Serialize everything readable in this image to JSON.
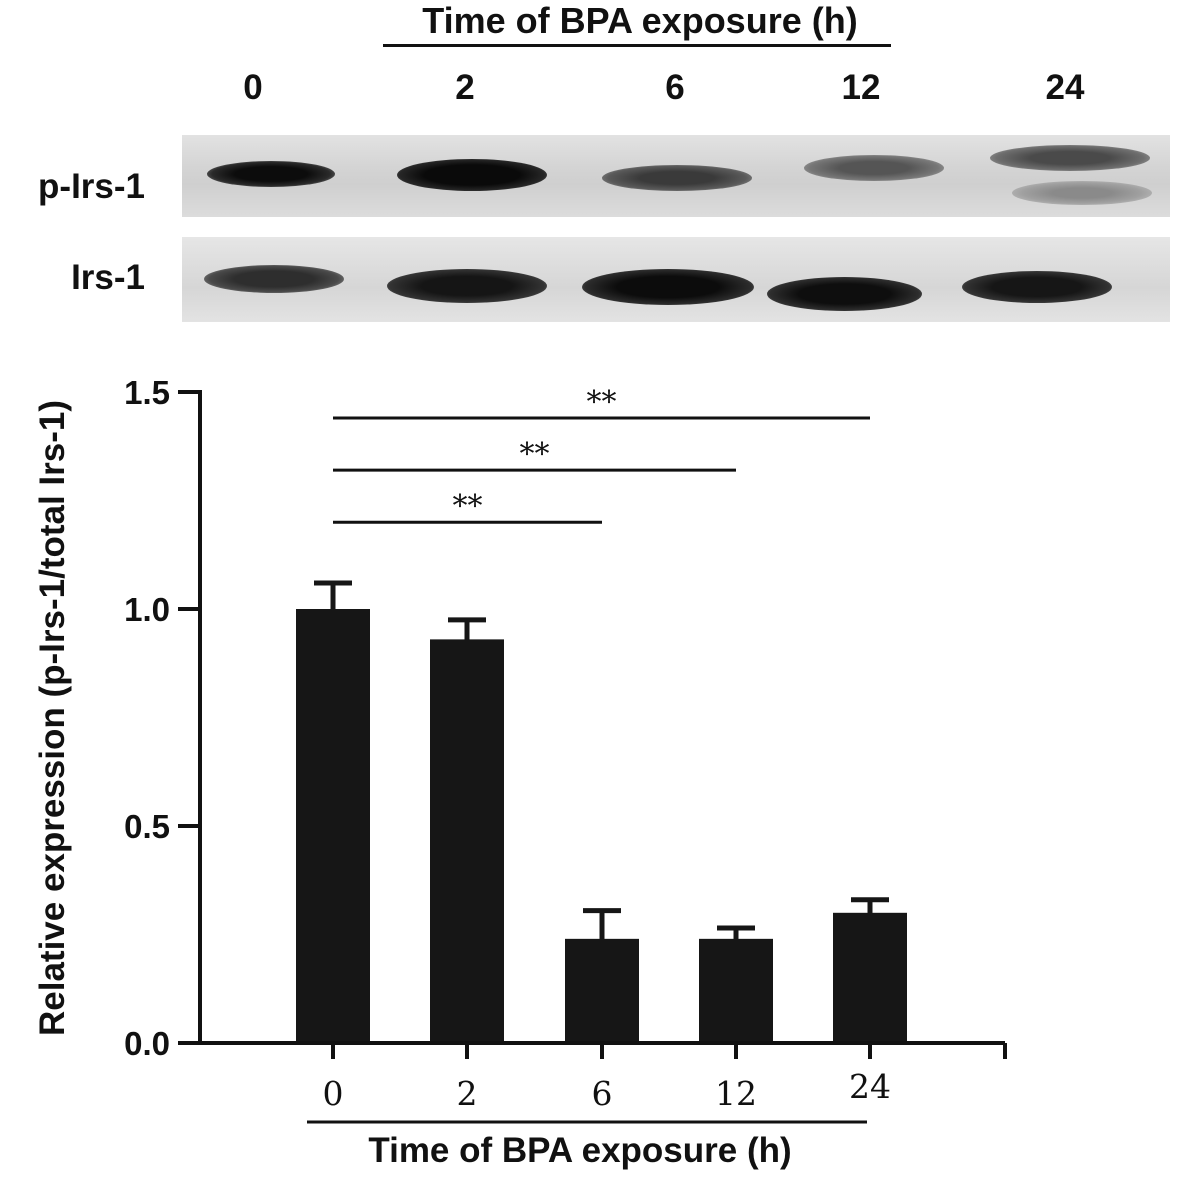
{
  "blot": {
    "top_title": "Time of BPA exposure (h)",
    "lanes": [
      "0",
      "2",
      "6",
      "12",
      "24"
    ],
    "rows": [
      "p-Irs-1",
      "Irs-1"
    ]
  },
  "chart_data": {
    "type": "bar",
    "categories": [
      "0",
      "2",
      "6",
      "12",
      "24"
    ],
    "values": [
      1.0,
      0.93,
      0.24,
      0.24,
      0.3
    ],
    "errors": [
      0.06,
      0.045,
      0.065,
      0.025,
      0.03
    ],
    "xlabel": "Time of BPA exposure (h)",
    "ylabel": "Relative expression (p-Irs-1/total Irs-1)",
    "ylim": [
      0,
      1.5
    ],
    "yticks": [
      "0.0",
      "0.5",
      "1.0",
      "1.5"
    ],
    "ytick_values": [
      0.0,
      0.5,
      1.0,
      1.5
    ],
    "significance": [
      {
        "from": "0",
        "to": "6",
        "label": "**",
        "level": 1.2
      },
      {
        "from": "0",
        "to": "12",
        "label": "**",
        "level": 1.32
      },
      {
        "from": "0",
        "to": "24",
        "label": "**",
        "level": 1.44
      }
    ],
    "bar_color": "#161616",
    "grid": false
  }
}
